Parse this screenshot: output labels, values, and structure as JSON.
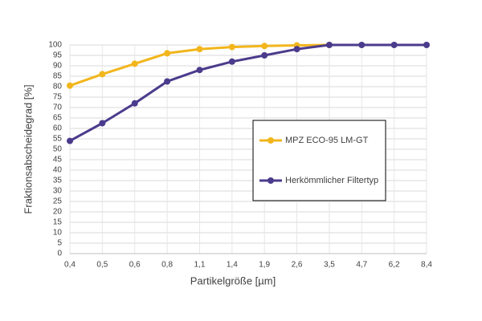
{
  "chart_data": {
    "type": "line",
    "x_label": "Partikelgröße [µm]",
    "y_label": "Fraktionsabscheidegrad [%]",
    "categories": [
      "0,4",
      "0,5",
      "0,6",
      "0,8",
      "1,1",
      "1,4",
      "1,9",
      "2,6",
      "3,5",
      "4,7",
      "6,2",
      "8,4"
    ],
    "series": [
      {
        "name": "MPZ ECO-95 LM-GT",
        "color": "#f2b61c",
        "values": [
          80.5,
          86,
          91,
          96,
          98,
          99,
          99.5,
          99.8,
          100,
          null,
          null,
          null
        ]
      },
      {
        "name": "Herkömmlicher Filtertyp",
        "color": "#4b3b8c",
        "values": [
          54,
          62.5,
          72,
          82.5,
          88,
          92,
          95,
          98,
          100,
          100,
          100,
          100
        ]
      }
    ],
    "ylim": [
      0,
      100
    ],
    "yticks": [
      0,
      5,
      10,
      15,
      20,
      25,
      30,
      35,
      40,
      45,
      50,
      55,
      60,
      65,
      70,
      75,
      80,
      85,
      90,
      95,
      100
    ],
    "grid": true,
    "legend": "right"
  }
}
